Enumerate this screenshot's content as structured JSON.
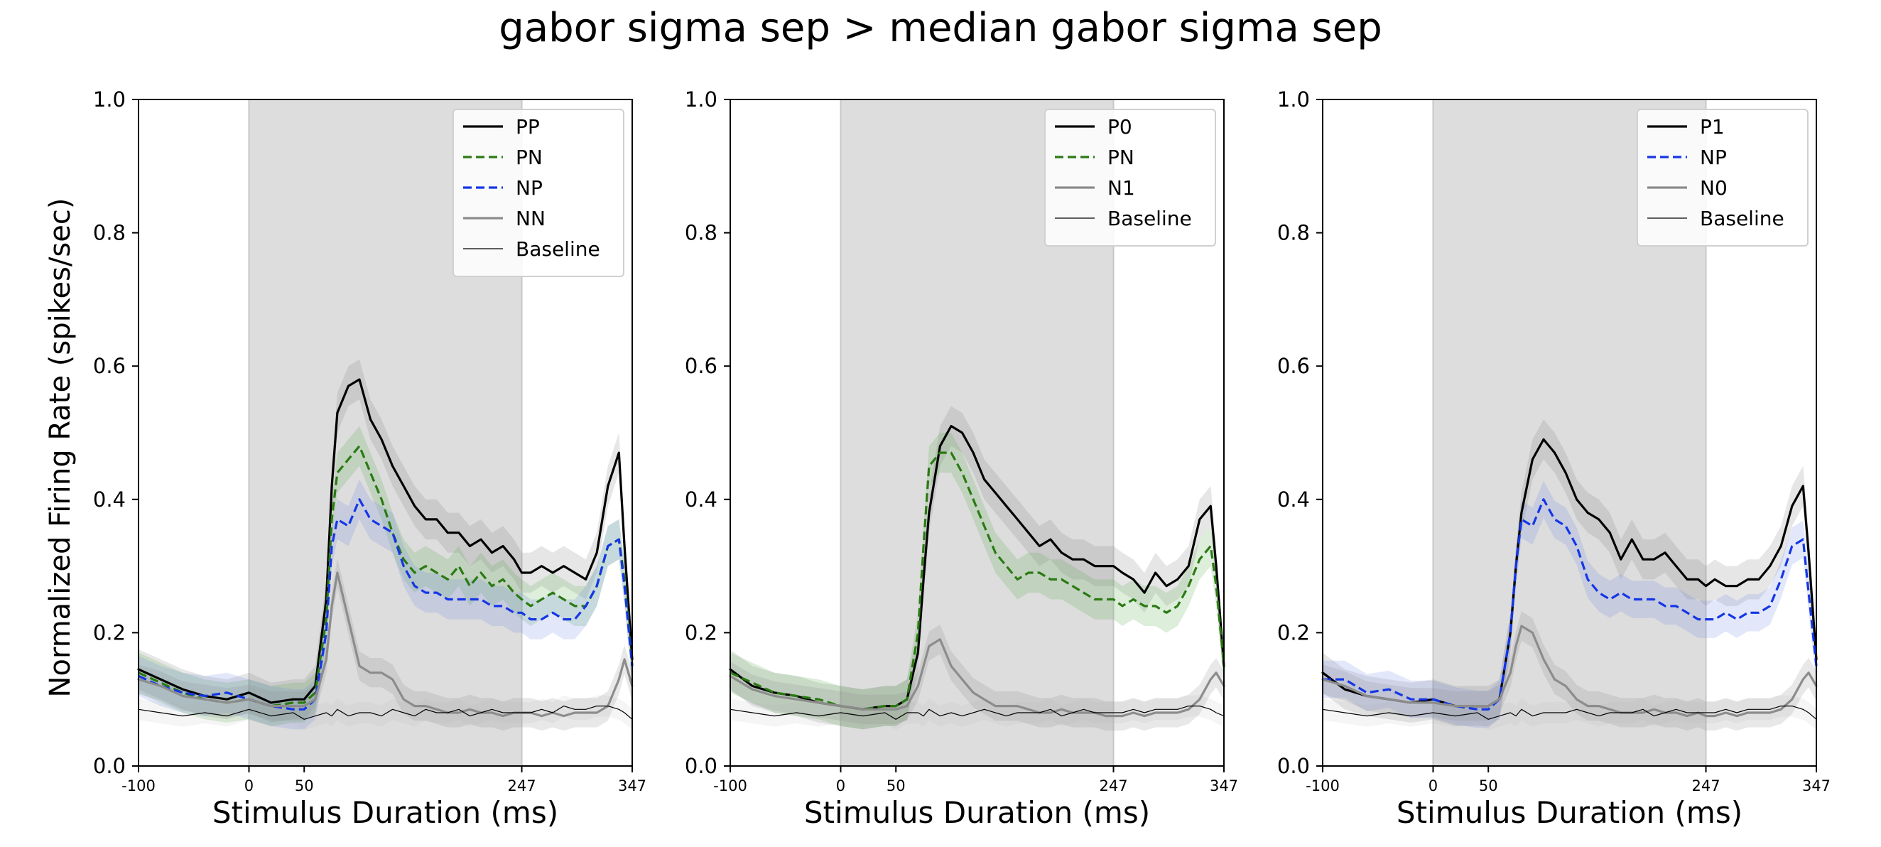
{
  "figure": {
    "title": "gabor sigma sep > median gabor sigma sep",
    "ylabel": "Normalized Firing Rate (spikes/sec)"
  },
  "chart_data": [
    {
      "type": "line",
      "xlabel": "Stimulus Duration (ms)",
      "ylabel": "Normalized Firing Rate (spikes/sec)",
      "xlim": [
        -100,
        347
      ],
      "ylim": [
        0.0,
        1.0
      ],
      "x_ticks": [
        -100,
        0,
        50,
        247,
        347
      ],
      "x_tick_labels": [
        "-100",
        "0",
        "50",
        "247",
        "347"
      ],
      "y_ticks": [
        0.0,
        0.2,
        0.4,
        0.6,
        0.8,
        1.0
      ],
      "y_tick_labels": [
        "0.0",
        "0.2",
        "0.4",
        "0.6",
        "0.8",
        "1.0"
      ],
      "stimulus_window": [
        0,
        247
      ],
      "grid": false,
      "legend_position": "upper right",
      "x": [
        -100,
        -80,
        -60,
        -40,
        -20,
        0,
        20,
        40,
        50,
        60,
        70,
        75,
        80,
        90,
        100,
        110,
        120,
        130,
        140,
        150,
        160,
        170,
        180,
        190,
        200,
        210,
        220,
        230,
        240,
        247,
        255,
        265,
        275,
        285,
        295,
        305,
        315,
        325,
        335,
        340,
        347
      ],
      "series": [
        {
          "name": "PP",
          "color": "#000000",
          "style": "solid",
          "width": 3.2,
          "band_color": "#808080",
          "values": [
            0.145,
            0.13,
            0.115,
            0.105,
            0.1,
            0.11,
            0.095,
            0.1,
            0.1,
            0.12,
            0.25,
            0.42,
            0.53,
            0.57,
            0.58,
            0.52,
            0.49,
            0.45,
            0.42,
            0.39,
            0.37,
            0.37,
            0.35,
            0.35,
            0.33,
            0.34,
            0.32,
            0.33,
            0.31,
            0.29,
            0.29,
            0.3,
            0.29,
            0.3,
            0.29,
            0.28,
            0.32,
            0.42,
            0.47,
            0.33,
            0.16
          ],
          "spread": 0.03
        },
        {
          "name": "PN",
          "color": "#2a7a12",
          "style": "dashed",
          "width": 3.2,
          "band_color": "#57a84a",
          "values": [
            0.14,
            0.125,
            0.11,
            0.1,
            0.095,
            0.1,
            0.09,
            0.095,
            0.095,
            0.11,
            0.22,
            0.37,
            0.44,
            0.46,
            0.48,
            0.44,
            0.4,
            0.35,
            0.31,
            0.29,
            0.3,
            0.29,
            0.28,
            0.3,
            0.27,
            0.29,
            0.27,
            0.28,
            0.26,
            0.25,
            0.24,
            0.25,
            0.26,
            0.25,
            0.24,
            0.24,
            0.27,
            0.33,
            0.34,
            0.28,
            0.15
          ],
          "spread": 0.03
        },
        {
          "name": "NP",
          "color": "#1436e6",
          "style": "dashed",
          "width": 3.2,
          "band_color": "#6f86e8",
          "values": [
            0.135,
            0.12,
            0.11,
            0.105,
            0.11,
            0.1,
            0.09,
            0.085,
            0.085,
            0.1,
            0.2,
            0.33,
            0.37,
            0.36,
            0.4,
            0.37,
            0.36,
            0.35,
            0.3,
            0.27,
            0.26,
            0.26,
            0.25,
            0.25,
            0.25,
            0.25,
            0.24,
            0.24,
            0.23,
            0.23,
            0.22,
            0.22,
            0.23,
            0.22,
            0.22,
            0.24,
            0.27,
            0.33,
            0.34,
            0.27,
            0.15
          ],
          "spread": 0.03
        },
        {
          "name": "NN",
          "color": "#8c8c8c",
          "style": "solid",
          "width": 3.2,
          "band_color": "#8c8c8c",
          "values": [
            0.13,
            0.12,
            0.105,
            0.1,
            0.095,
            0.1,
            0.09,
            0.09,
            0.09,
            0.1,
            0.16,
            0.24,
            0.29,
            0.22,
            0.15,
            0.14,
            0.14,
            0.13,
            0.1,
            0.09,
            0.09,
            0.085,
            0.08,
            0.08,
            0.085,
            0.08,
            0.08,
            0.075,
            0.08,
            0.08,
            0.08,
            0.075,
            0.08,
            0.075,
            0.08,
            0.08,
            0.08,
            0.09,
            0.13,
            0.16,
            0.12
          ],
          "spread": 0.022
        },
        {
          "name": "Baseline",
          "color": "#000000",
          "style": "solid",
          "width": 1.2,
          "band_color": "#b0b0b0",
          "values": [
            0.085,
            0.08,
            0.075,
            0.08,
            0.075,
            0.085,
            0.075,
            0.08,
            0.07,
            0.075,
            0.08,
            0.075,
            0.085,
            0.075,
            0.08,
            0.08,
            0.075,
            0.085,
            0.08,
            0.075,
            0.085,
            0.08,
            0.08,
            0.085,
            0.075,
            0.08,
            0.085,
            0.08,
            0.08,
            0.08,
            0.08,
            0.085,
            0.08,
            0.09,
            0.085,
            0.085,
            0.09,
            0.09,
            0.085,
            0.08,
            0.07
          ],
          "spread": 0.016
        }
      ]
    },
    {
      "type": "line",
      "xlabel": "Stimulus Duration (ms)",
      "xlim": [
        -100,
        347
      ],
      "ylim": [
        0.0,
        1.0
      ],
      "x_ticks": [
        -100,
        0,
        50,
        247,
        347
      ],
      "x_tick_labels": [
        "-100",
        "0",
        "50",
        "247",
        "347"
      ],
      "y_ticks": [
        0.0,
        0.2,
        0.4,
        0.6,
        0.8,
        1.0
      ],
      "y_tick_labels": [
        "0.0",
        "0.2",
        "0.4",
        "0.6",
        "0.8",
        "1.0"
      ],
      "stimulus_window": [
        0,
        247
      ],
      "grid": false,
      "legend_position": "upper right",
      "x": [
        -100,
        -80,
        -60,
        -40,
        -20,
        0,
        20,
        40,
        50,
        60,
        70,
        75,
        80,
        90,
        100,
        110,
        120,
        130,
        140,
        150,
        160,
        170,
        180,
        190,
        200,
        210,
        220,
        230,
        240,
        247,
        255,
        265,
        275,
        285,
        295,
        305,
        315,
        325,
        335,
        340,
        347
      ],
      "series": [
        {
          "name": "P0",
          "color": "#000000",
          "style": "solid",
          "width": 3.2,
          "band_color": "#808080",
          "values": [
            0.145,
            0.12,
            0.11,
            0.105,
            0.095,
            0.09,
            0.085,
            0.09,
            0.09,
            0.1,
            0.17,
            0.28,
            0.38,
            0.48,
            0.51,
            0.5,
            0.47,
            0.43,
            0.41,
            0.39,
            0.37,
            0.35,
            0.33,
            0.34,
            0.32,
            0.31,
            0.31,
            0.3,
            0.3,
            0.3,
            0.29,
            0.28,
            0.26,
            0.29,
            0.27,
            0.28,
            0.3,
            0.37,
            0.39,
            0.3,
            0.15
          ],
          "spread": 0.03
        },
        {
          "name": "PN",
          "color": "#2a7a12",
          "style": "dashed",
          "width": 3.2,
          "band_color": "#57a84a",
          "values": [
            0.14,
            0.125,
            0.11,
            0.105,
            0.1,
            0.09,
            0.085,
            0.09,
            0.09,
            0.1,
            0.2,
            0.33,
            0.45,
            0.47,
            0.47,
            0.44,
            0.4,
            0.36,
            0.32,
            0.3,
            0.28,
            0.29,
            0.29,
            0.28,
            0.28,
            0.27,
            0.26,
            0.25,
            0.25,
            0.25,
            0.24,
            0.25,
            0.24,
            0.24,
            0.23,
            0.24,
            0.27,
            0.31,
            0.33,
            0.27,
            0.15
          ],
          "spread": 0.03
        },
        {
          "name": "N1",
          "color": "#8c8c8c",
          "style": "solid",
          "width": 3.2,
          "band_color": "#8c8c8c",
          "values": [
            0.135,
            0.115,
            0.105,
            0.1,
            0.095,
            0.09,
            0.085,
            0.085,
            0.085,
            0.09,
            0.12,
            0.15,
            0.18,
            0.19,
            0.15,
            0.13,
            0.11,
            0.1,
            0.09,
            0.09,
            0.09,
            0.085,
            0.08,
            0.08,
            0.085,
            0.08,
            0.08,
            0.08,
            0.075,
            0.075,
            0.075,
            0.08,
            0.075,
            0.08,
            0.08,
            0.08,
            0.085,
            0.1,
            0.13,
            0.14,
            0.12
          ],
          "spread": 0.022
        },
        {
          "name": "Baseline",
          "color": "#000000",
          "style": "solid",
          "width": 1.2,
          "band_color": "#b0b0b0",
          "values": [
            0.085,
            0.08,
            0.075,
            0.08,
            0.075,
            0.08,
            0.075,
            0.08,
            0.07,
            0.08,
            0.08,
            0.075,
            0.085,
            0.075,
            0.08,
            0.075,
            0.08,
            0.085,
            0.08,
            0.075,
            0.08,
            0.08,
            0.08,
            0.085,
            0.075,
            0.08,
            0.085,
            0.08,
            0.08,
            0.08,
            0.08,
            0.085,
            0.08,
            0.085,
            0.085,
            0.085,
            0.09,
            0.09,
            0.085,
            0.08,
            0.075
          ],
          "spread": 0.016
        }
      ]
    },
    {
      "type": "line",
      "xlabel": "Stimulus Duration (ms)",
      "xlim": [
        -100,
        347
      ],
      "ylim": [
        0.0,
        1.0
      ],
      "x_ticks": [
        -100,
        0,
        50,
        247,
        347
      ],
      "x_tick_labels": [
        "-100",
        "0",
        "50",
        "247",
        "347"
      ],
      "y_ticks": [
        0.0,
        0.2,
        0.4,
        0.6,
        0.8,
        1.0
      ],
      "y_tick_labels": [
        "0.0",
        "0.2",
        "0.4",
        "0.6",
        "0.8",
        "1.0"
      ],
      "stimulus_window": [
        0,
        247
      ],
      "grid": false,
      "legend_position": "upper right",
      "x": [
        -100,
        -80,
        -60,
        -40,
        -20,
        0,
        20,
        40,
        50,
        60,
        70,
        75,
        80,
        90,
        100,
        110,
        120,
        130,
        140,
        150,
        160,
        170,
        180,
        190,
        200,
        210,
        220,
        230,
        240,
        247,
        255,
        265,
        275,
        285,
        295,
        305,
        315,
        325,
        335,
        340,
        347
      ],
      "series": [
        {
          "name": "P1",
          "color": "#000000",
          "style": "solid",
          "width": 3.2,
          "band_color": "#808080",
          "values": [
            0.14,
            0.115,
            0.105,
            0.1,
            0.095,
            0.1,
            0.09,
            0.09,
            0.09,
            0.1,
            0.2,
            0.3,
            0.38,
            0.46,
            0.49,
            0.47,
            0.44,
            0.4,
            0.38,
            0.37,
            0.35,
            0.31,
            0.34,
            0.31,
            0.31,
            0.32,
            0.3,
            0.28,
            0.28,
            0.27,
            0.28,
            0.27,
            0.27,
            0.28,
            0.28,
            0.3,
            0.33,
            0.39,
            0.42,
            0.32,
            0.16
          ],
          "spread": 0.03
        },
        {
          "name": "NP",
          "color": "#1436e6",
          "style": "dashed",
          "width": 3.2,
          "band_color": "#6f86e8",
          "values": [
            0.13,
            0.13,
            0.11,
            0.115,
            0.1,
            0.1,
            0.09,
            0.085,
            0.085,
            0.1,
            0.2,
            0.3,
            0.37,
            0.36,
            0.4,
            0.37,
            0.36,
            0.33,
            0.28,
            0.26,
            0.25,
            0.26,
            0.25,
            0.25,
            0.25,
            0.24,
            0.24,
            0.23,
            0.22,
            0.22,
            0.22,
            0.23,
            0.22,
            0.23,
            0.23,
            0.24,
            0.28,
            0.33,
            0.34,
            0.26,
            0.15
          ],
          "spread": 0.028
        },
        {
          "name": "N0",
          "color": "#8c8c8c",
          "style": "solid",
          "width": 3.2,
          "band_color": "#8c8c8c",
          "values": [
            0.13,
            0.12,
            0.105,
            0.1,
            0.095,
            0.095,
            0.09,
            0.09,
            0.09,
            0.1,
            0.14,
            0.18,
            0.21,
            0.2,
            0.16,
            0.13,
            0.12,
            0.1,
            0.09,
            0.09,
            0.085,
            0.08,
            0.08,
            0.08,
            0.085,
            0.08,
            0.08,
            0.075,
            0.08,
            0.075,
            0.075,
            0.08,
            0.075,
            0.08,
            0.08,
            0.08,
            0.085,
            0.1,
            0.13,
            0.14,
            0.12
          ],
          "spread": 0.022
        },
        {
          "name": "Baseline",
          "color": "#000000",
          "style": "solid",
          "width": 1.2,
          "band_color": "#b0b0b0",
          "values": [
            0.085,
            0.08,
            0.075,
            0.08,
            0.075,
            0.08,
            0.075,
            0.08,
            0.07,
            0.075,
            0.08,
            0.075,
            0.085,
            0.075,
            0.08,
            0.08,
            0.08,
            0.085,
            0.08,
            0.075,
            0.08,
            0.08,
            0.08,
            0.085,
            0.075,
            0.08,
            0.085,
            0.08,
            0.08,
            0.08,
            0.08,
            0.085,
            0.08,
            0.085,
            0.085,
            0.085,
            0.09,
            0.09,
            0.085,
            0.08,
            0.07
          ],
          "spread": 0.016
        }
      ]
    }
  ]
}
